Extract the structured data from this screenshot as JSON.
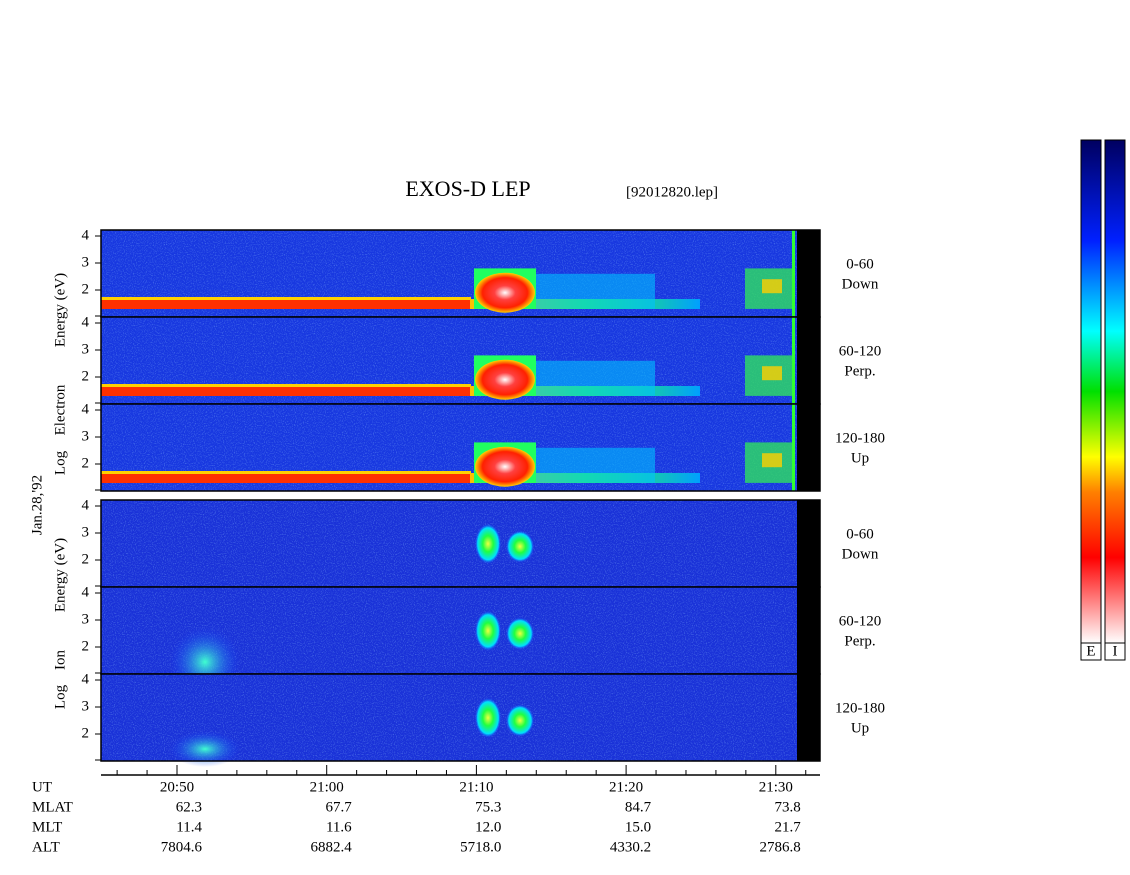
{
  "title": "EXOS-D LEP",
  "file": "[92012820.lep]",
  "date": "Jan.28,'92",
  "electron": {
    "ylabel": [
      "Log",
      "Electron",
      "Energy (eV)"
    ],
    "panels": [
      {
        "angle": "0-60",
        "direction": "Down",
        "yticks": [
          2,
          3,
          4
        ]
      },
      {
        "angle": "60-120",
        "direction": "Perp.",
        "yticks": [
          2,
          3,
          4
        ]
      },
      {
        "angle": "120-180",
        "direction": "Up",
        "yticks": [
          2,
          3,
          4
        ]
      }
    ]
  },
  "ion": {
    "ylabel": [
      "Log",
      "Ion",
      "Energy (eV)"
    ],
    "panels": [
      {
        "angle": "0-60",
        "direction": "Down",
        "yticks": [
          2,
          3,
          4
        ]
      },
      {
        "angle": "60-120",
        "direction": "Perp.",
        "yticks": [
          2,
          3,
          4
        ]
      },
      {
        "angle": "120-180",
        "direction": "Up",
        "yticks": [
          2,
          3,
          4
        ]
      }
    ]
  },
  "orbit": {
    "labels": [
      "UT",
      "MLAT",
      "MLT",
      "ALT"
    ],
    "values": [
      [
        "20:50",
        "21:00",
        "21:10",
        "21:20",
        "21:30"
      ],
      [
        "62.3",
        "67.7",
        "75.3",
        "84.7",
        "73.8"
      ],
      [
        "11.4",
        "11.6",
        "12.0",
        "15.0",
        "21.7"
      ],
      [
        "7804.6",
        "6882.4",
        "5718.0",
        "4330.2",
        "2786.8"
      ]
    ]
  },
  "colorbars": [
    "E",
    "I"
  ]
}
